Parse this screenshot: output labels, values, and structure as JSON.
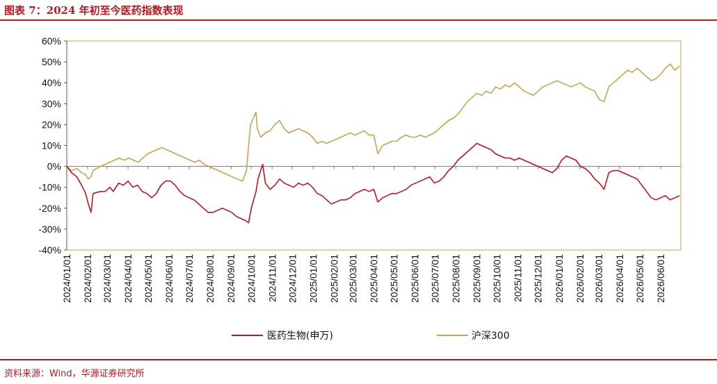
{
  "header": {
    "title": "图表 7：2024 年初至今医药指数表现"
  },
  "footer": {
    "source": "资料来源：Wind，华源证券研究所"
  },
  "colors": {
    "accent": "#c0141e",
    "pharma": "#c0141e",
    "hs300": "#c9a44c"
  },
  "chart_data": {
    "type": "line",
    "title": "",
    "xlabel": "",
    "ylabel": "",
    "ylim": [
      -40,
      60
    ],
    "y_ticks": [
      "60%",
      "50%",
      "40%",
      "30%",
      "20%",
      "10%",
      "0%",
      "-10%",
      "-20%",
      "-30%",
      "-40%"
    ],
    "x_ticks": [
      "2024/01/01",
      "2024/02/01",
      "2024/03/01",
      "2024/04/01",
      "2024/05/01",
      "2024/06/01",
      "2024/07/01",
      "2024/08/01",
      "2024/09/01",
      "2024/10/01",
      "2024/11/01",
      "2024/12/01",
      "2025/01/01",
      "2025/02/01",
      "2025/03/01",
      "2025/04/01",
      "2025/05/01",
      "2025/06/01",
      "2025/07/01",
      "2025/08/01",
      "2025/09/01",
      "2025/10/01",
      "2025/11/01",
      "2025/12/01",
      "2026/01/01",
      "2026/02/01",
      "2026/03/01",
      "2026/04/01",
      "2026/05/01",
      "2026/06/01"
    ],
    "x_end": "2026/07/01",
    "grid": false,
    "legend_position": "bottom",
    "series": [
      {
        "name": "医药生物(申万)",
        "color": "#c0141e",
        "points": [
          [
            "2024/01/01",
            0
          ],
          [
            "2024/01/08",
            -3
          ],
          [
            "2024/01/16",
            -5
          ],
          [
            "2024/01/23",
            -9
          ],
          [
            "2024/01/29",
            -13
          ],
          [
            "2024/02/02",
            -18
          ],
          [
            "2024/02/06",
            -22
          ],
          [
            "2024/02/09",
            -13
          ],
          [
            "2024/02/20",
            -12
          ],
          [
            "2024/02/27",
            -12
          ],
          [
            "2024/03/05",
            -10
          ],
          [
            "2024/03/10",
            -12
          ],
          [
            "2024/03/18",
            -8
          ],
          [
            "2024/03/25",
            -9
          ],
          [
            "2024/04/01",
            -7
          ],
          [
            "2024/04/08",
            -10
          ],
          [
            "2024/04/15",
            -9
          ],
          [
            "2024/04/22",
            -12
          ],
          [
            "2024/04/29",
            -13
          ],
          [
            "2024/05/06",
            -15
          ],
          [
            "2024/05/13",
            -13
          ],
          [
            "2024/05/20",
            -9
          ],
          [
            "2024/05/27",
            -7
          ],
          [
            "2024/06/03",
            -7
          ],
          [
            "2024/06/10",
            -9
          ],
          [
            "2024/06/17",
            -12
          ],
          [
            "2024/06/24",
            -14
          ],
          [
            "2024/07/01",
            -15
          ],
          [
            "2024/07/08",
            -16
          ],
          [
            "2024/07/15",
            -18
          ],
          [
            "2024/07/22",
            -20
          ],
          [
            "2024/07/29",
            -22
          ],
          [
            "2024/08/05",
            -22
          ],
          [
            "2024/08/12",
            -21
          ],
          [
            "2024/08/19",
            -20
          ],
          [
            "2024/08/26",
            -21
          ],
          [
            "2024/09/02",
            -22
          ],
          [
            "2024/09/09",
            -24
          ],
          [
            "2024/09/16",
            -25
          ],
          [
            "2024/09/23",
            -26
          ],
          [
            "2024/09/27",
            -27
          ],
          [
            "2024/10/01",
            -20
          ],
          [
            "2024/10/08",
            -12
          ],
          [
            "2024/10/11",
            -6
          ],
          [
            "2024/10/15",
            -2
          ],
          [
            "2024/10/18",
            1
          ],
          [
            "2024/10/22",
            -8
          ],
          [
            "2024/10/29",
            -11
          ],
          [
            "2024/11/05",
            -9
          ],
          [
            "2024/11/12",
            -6
          ],
          [
            "2024/11/19",
            -8
          ],
          [
            "2024/11/26",
            -9
          ],
          [
            "2024/12/03",
            -10
          ],
          [
            "2024/12/10",
            -8
          ],
          [
            "2024/12/17",
            -9
          ],
          [
            "2024/12/24",
            -8
          ],
          [
            "2024/12/31",
            -10
          ],
          [
            "2025/01/07",
            -13
          ],
          [
            "2025/01/14",
            -14
          ],
          [
            "2025/01/21",
            -16
          ],
          [
            "2025/01/28",
            -18
          ],
          [
            "2025/02/04",
            -17
          ],
          [
            "2025/02/11",
            -16
          ],
          [
            "2025/02/18",
            -16
          ],
          [
            "2025/02/25",
            -15
          ],
          [
            "2025/03/04",
            -13
          ],
          [
            "2025/03/11",
            -12
          ],
          [
            "2025/03/18",
            -11
          ],
          [
            "2025/03/25",
            -12
          ],
          [
            "2025/04/01",
            -11
          ],
          [
            "2025/04/07",
            -17
          ],
          [
            "2025/04/14",
            -15
          ],
          [
            "2025/04/21",
            -14
          ],
          [
            "2025/04/28",
            -13
          ],
          [
            "2025/05/05",
            -13
          ],
          [
            "2025/05/12",
            -12
          ],
          [
            "2025/05/19",
            -11
          ],
          [
            "2025/05/26",
            -9
          ],
          [
            "2025/06/02",
            -8
          ],
          [
            "2025/06/09",
            -7
          ],
          [
            "2025/06/16",
            -6
          ],
          [
            "2025/06/23",
            -5
          ],
          [
            "2025/06/30",
            -8
          ],
          [
            "2025/07/07",
            -7
          ],
          [
            "2025/07/14",
            -5
          ],
          [
            "2025/07/21",
            -2
          ],
          [
            "2025/07/28",
            0
          ],
          [
            "2025/08/04",
            3
          ],
          [
            "2025/08/11",
            5
          ],
          [
            "2025/08/18",
            7
          ],
          [
            "2025/08/25",
            9
          ],
          [
            "2025/09/01",
            11
          ],
          [
            "2025/09/08",
            10
          ],
          [
            "2025/09/15",
            9
          ],
          [
            "2025/09/22",
            8
          ],
          [
            "2025/09/29",
            6
          ],
          [
            "2025/10/06",
            5
          ],
          [
            "2025/10/13",
            4
          ],
          [
            "2025/10/20",
            4
          ],
          [
            "2025/10/27",
            3
          ],
          [
            "2025/11/03",
            4
          ],
          [
            "2025/11/10",
            3
          ],
          [
            "2025/11/17",
            2
          ],
          [
            "2025/11/24",
            1
          ],
          [
            "2025/12/01",
            0
          ],
          [
            "2025/12/08",
            -1
          ],
          [
            "2025/12/15",
            -2
          ],
          [
            "2025/12/22",
            -3
          ],
          [
            "2025/12/29",
            -1
          ],
          [
            "2026/01/05",
            3
          ],
          [
            "2026/01/12",
            5
          ],
          [
            "2026/01/19",
            4
          ],
          [
            "2026/01/26",
            3
          ],
          [
            "2026/02/02",
            0
          ],
          [
            "2026/02/09",
            -1
          ],
          [
            "2026/02/16",
            -3
          ],
          [
            "2026/02/23",
            -6
          ],
          [
            "2026/03/02",
            -8
          ],
          [
            "2026/03/09",
            -11
          ],
          [
            "2026/03/16",
            -3
          ],
          [
            "2026/03/23",
            -2
          ],
          [
            "2026/03/30",
            -2
          ],
          [
            "2026/04/06",
            -3
          ],
          [
            "2026/04/13",
            -4
          ],
          [
            "2026/04/20",
            -5
          ],
          [
            "2026/04/27",
            -6
          ],
          [
            "2026/05/04",
            -9
          ],
          [
            "2026/05/11",
            -12
          ],
          [
            "2026/05/18",
            -15
          ],
          [
            "2026/05/25",
            -16
          ],
          [
            "2026/06/01",
            -15
          ],
          [
            "2026/06/08",
            -14
          ],
          [
            "2026/06/15",
            -16
          ],
          [
            "2026/06/22",
            -15
          ],
          [
            "2026/06/29",
            -14
          ]
        ]
      },
      {
        "name": "沪深300",
        "color": "#c9a44c",
        "points": [
          [
            "2024/01/01",
            0
          ],
          [
            "2024/01/08",
            -2
          ],
          [
            "2024/01/16",
            -1
          ],
          [
            "2024/01/23",
            -3
          ],
          [
            "2024/01/29",
            -4
          ],
          [
            "2024/02/02",
            -6
          ],
          [
            "2024/02/06",
            -5
          ],
          [
            "2024/02/09",
            -2
          ],
          [
            "2024/02/20",
            0
          ],
          [
            "2024/02/27",
            1
          ],
          [
            "2024/03/05",
            2
          ],
          [
            "2024/03/12",
            3
          ],
          [
            "2024/03/19",
            4
          ],
          [
            "2024/03/26",
            3
          ],
          [
            "2024/04/02",
            4
          ],
          [
            "2024/04/09",
            3
          ],
          [
            "2024/04/16",
            2
          ],
          [
            "2024/04/23",
            4
          ],
          [
            "2024/04/30",
            6
          ],
          [
            "2024/05/07",
            7
          ],
          [
            "2024/05/14",
            8
          ],
          [
            "2024/05/21",
            9
          ],
          [
            "2024/05/28",
            8
          ],
          [
            "2024/06/04",
            7
          ],
          [
            "2024/06/11",
            6
          ],
          [
            "2024/06/18",
            5
          ],
          [
            "2024/06/25",
            4
          ],
          [
            "2024/07/02",
            3
          ],
          [
            "2024/07/09",
            2
          ],
          [
            "2024/07/16",
            3
          ],
          [
            "2024/07/23",
            1
          ],
          [
            "2024/07/30",
            0
          ],
          [
            "2024/08/06",
            -1
          ],
          [
            "2024/08/13",
            -2
          ],
          [
            "2024/08/20",
            -3
          ],
          [
            "2024/08/27",
            -4
          ],
          [
            "2024/09/03",
            -5
          ],
          [
            "2024/09/10",
            -6
          ],
          [
            "2024/09/18",
            -7
          ],
          [
            "2024/09/24",
            -2
          ],
          [
            "2024/09/27",
            10
          ],
          [
            "2024/09/30",
            20
          ],
          [
            "2024/10/08",
            26
          ],
          [
            "2024/10/10",
            18
          ],
          [
            "2024/10/15",
            14
          ],
          [
            "2024/10/22",
            16
          ],
          [
            "2024/10/29",
            17
          ],
          [
            "2024/11/05",
            20
          ],
          [
            "2024/11/12",
            22
          ],
          [
            "2024/11/19",
            18
          ],
          [
            "2024/11/26",
            16
          ],
          [
            "2024/12/03",
            17
          ],
          [
            "2024/12/10",
            18
          ],
          [
            "2024/12/17",
            17
          ],
          [
            "2024/12/24",
            16
          ],
          [
            "2024/12/31",
            14
          ],
          [
            "2025/01/07",
            11
          ],
          [
            "2025/01/14",
            12
          ],
          [
            "2025/01/21",
            11
          ],
          [
            "2025/01/28",
            12
          ],
          [
            "2025/02/04",
            13
          ],
          [
            "2025/02/11",
            14
          ],
          [
            "2025/02/18",
            15
          ],
          [
            "2025/02/25",
            16
          ],
          [
            "2025/03/04",
            15
          ],
          [
            "2025/03/11",
            16
          ],
          [
            "2025/03/18",
            17
          ],
          [
            "2025/03/25",
            15
          ],
          [
            "2025/04/01",
            15
          ],
          [
            "2025/04/07",
            6
          ],
          [
            "2025/04/14",
            10
          ],
          [
            "2025/04/21",
            11
          ],
          [
            "2025/04/28",
            12
          ],
          [
            "2025/05/05",
            12
          ],
          [
            "2025/05/12",
            14
          ],
          [
            "2025/05/19",
            15
          ],
          [
            "2025/05/26",
            14
          ],
          [
            "2025/06/02",
            14
          ],
          [
            "2025/06/09",
            15
          ],
          [
            "2025/06/16",
            14
          ],
          [
            "2025/06/23",
            15
          ],
          [
            "2025/06/30",
            16
          ],
          [
            "2025/07/07",
            18
          ],
          [
            "2025/07/14",
            20
          ],
          [
            "2025/07/21",
            22
          ],
          [
            "2025/07/28",
            23
          ],
          [
            "2025/08/04",
            25
          ],
          [
            "2025/08/11",
            28
          ],
          [
            "2025/08/18",
            31
          ],
          [
            "2025/08/25",
            33
          ],
          [
            "2025/09/01",
            35
          ],
          [
            "2025/09/08",
            34
          ],
          [
            "2025/09/15",
            36
          ],
          [
            "2025/09/22",
            35
          ],
          [
            "2025/09/29",
            38
          ],
          [
            "2025/10/06",
            37
          ],
          [
            "2025/10/13",
            39
          ],
          [
            "2025/10/20",
            38
          ],
          [
            "2025/10/27",
            40
          ],
          [
            "2025/11/03",
            38
          ],
          [
            "2025/11/10",
            36
          ],
          [
            "2025/11/17",
            35
          ],
          [
            "2025/11/24",
            34
          ],
          [
            "2025/12/01",
            36
          ],
          [
            "2025/12/08",
            38
          ],
          [
            "2025/12/15",
            39
          ],
          [
            "2025/12/22",
            40
          ],
          [
            "2025/12/29",
            41
          ],
          [
            "2026/01/05",
            40
          ],
          [
            "2026/01/12",
            39
          ],
          [
            "2026/01/19",
            38
          ],
          [
            "2026/01/26",
            39
          ],
          [
            "2026/02/02",
            40
          ],
          [
            "2026/02/09",
            38
          ],
          [
            "2026/02/16",
            37
          ],
          [
            "2026/02/23",
            36
          ],
          [
            "2026/03/02",
            32
          ],
          [
            "2026/03/09",
            31
          ],
          [
            "2026/03/16",
            38
          ],
          [
            "2026/03/23",
            40
          ],
          [
            "2026/03/30",
            42
          ],
          [
            "2026/04/06",
            44
          ],
          [
            "2026/04/13",
            46
          ],
          [
            "2026/04/20",
            45
          ],
          [
            "2026/04/27",
            47
          ],
          [
            "2026/05/04",
            45
          ],
          [
            "2026/05/11",
            43
          ],
          [
            "2026/05/18",
            41
          ],
          [
            "2026/05/25",
            42
          ],
          [
            "2026/06/01",
            44
          ],
          [
            "2026/06/08",
            47
          ],
          [
            "2026/06/15",
            49
          ],
          [
            "2026/06/22",
            46
          ],
          [
            "2026/06/29",
            48
          ]
        ]
      }
    ]
  }
}
